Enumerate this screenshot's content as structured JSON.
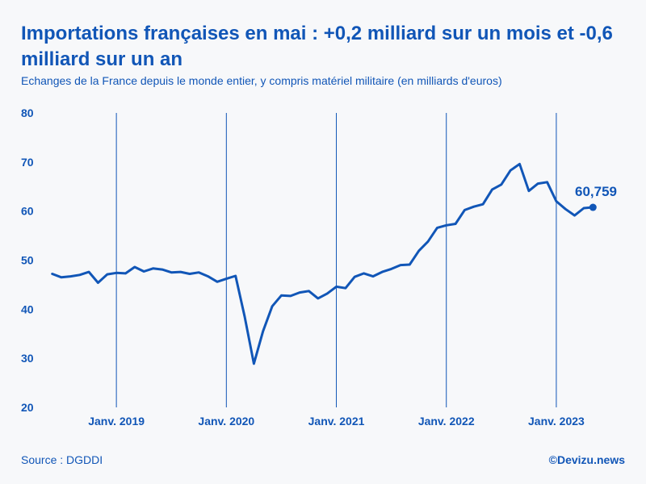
{
  "header": {
    "title": "Importations françaises en mai : +0,2 milliard sur un mois et -0,6 milliard sur un an",
    "subtitle": "Echanges de la France depuis le monde entier, y compris matériel militaire (en milliards d'euros)"
  },
  "footer": {
    "source": "Source : DGDDI",
    "credit": "©Devizu.news"
  },
  "colors": {
    "accent": "#1156b7",
    "background": "#f7f8fa"
  },
  "chart_data": {
    "type": "line",
    "title": "Importations françaises en mai : +0,2 milliard sur un mois et -0,6 milliard sur un an",
    "xlabel": "",
    "ylabel": "",
    "ylim": [
      20,
      80
    ],
    "yticks": [
      20,
      30,
      40,
      50,
      60,
      70,
      80
    ],
    "grid": "vertical lines at each January",
    "x_start": "2018-06",
    "x_range_months": [
      -0.5,
      59.5
    ],
    "xticks": [
      {
        "label": "Janv. 2019",
        "month_index": 7
      },
      {
        "label": "Janv. 2020",
        "month_index": 19
      },
      {
        "label": "Janv. 2021",
        "month_index": 31
      },
      {
        "label": "Janv. 2022",
        "month_index": 43
      },
      {
        "label": "Janv. 2023",
        "month_index": 55
      }
    ],
    "series": [
      {
        "name": "Importations",
        "values": [
          47.2,
          46.5,
          46.7,
          47.0,
          47.6,
          45.4,
          47.1,
          47.4,
          47.3,
          48.6,
          47.7,
          48.3,
          48.1,
          47.5,
          47.6,
          47.2,
          47.5,
          46.7,
          45.6,
          46.2,
          46.8,
          38.5,
          28.9,
          35.5,
          40.6,
          42.8,
          42.7,
          43.4,
          43.7,
          42.2,
          43.2,
          44.6,
          44.3,
          46.6,
          47.3,
          46.7,
          47.6,
          48.2,
          49.0,
          49.1,
          51.9,
          53.8,
          56.6,
          57.1,
          57.4,
          60.2,
          60.9,
          61.4,
          64.4,
          65.4,
          68.3,
          69.6,
          64.1,
          65.6,
          65.9,
          62.0,
          60.4,
          59.1,
          60.6,
          60.759
        ]
      }
    ],
    "last_point_label": "60,759"
  }
}
